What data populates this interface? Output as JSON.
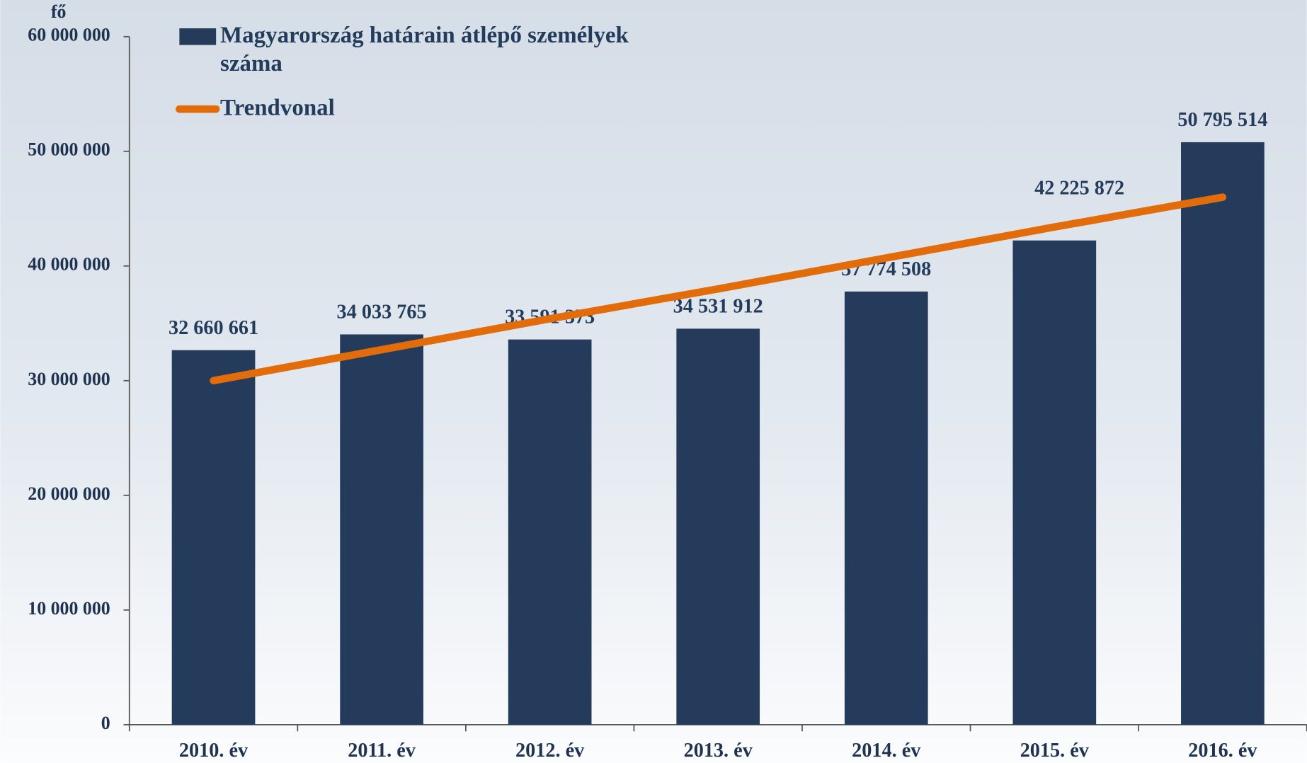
{
  "chart_data": {
    "type": "bar",
    "y_label": "fő",
    "categories": [
      "2010. év",
      "2011. év",
      "2012. év",
      "2013. év",
      "2014. év",
      "2015. év",
      "2016. év"
    ],
    "series": [
      {
        "name": "Magyarország határain átlépő személyek száma",
        "color": "#243b5c",
        "values": [
          32660661,
          34033765,
          33591373,
          34531912,
          37774508,
          42225872,
          50795514
        ],
        "value_labels": [
          "32 660 661",
          "34 033 765",
          "33 591 373",
          "34 531 912",
          "37 774 508",
          "42 225 872",
          "50 795 514"
        ]
      },
      {
        "name": "Trendvonal",
        "type": "line",
        "color": "#e36c0a",
        "values": [
          30000000,
          32700000,
          35400000,
          38000000,
          40700000,
          43400000,
          46000000
        ]
      }
    ],
    "ylim": [
      0,
      60000000
    ],
    "yticks": [
      0,
      {
        "value": 10000000,
        "label": "10 000 000"
      },
      {
        "value": 20000000,
        "label": "20 000 000"
      },
      {
        "value": 30000000,
        "label": "30 000 000"
      },
      {
        "value": 40000000,
        "label": "40 000 000"
      },
      {
        "value": 50000000,
        "label": "50 000 000"
      },
      {
        "value": 60000000,
        "label": "60 000 000"
      }
    ],
    "grid": false,
    "legend": "top-left"
  }
}
